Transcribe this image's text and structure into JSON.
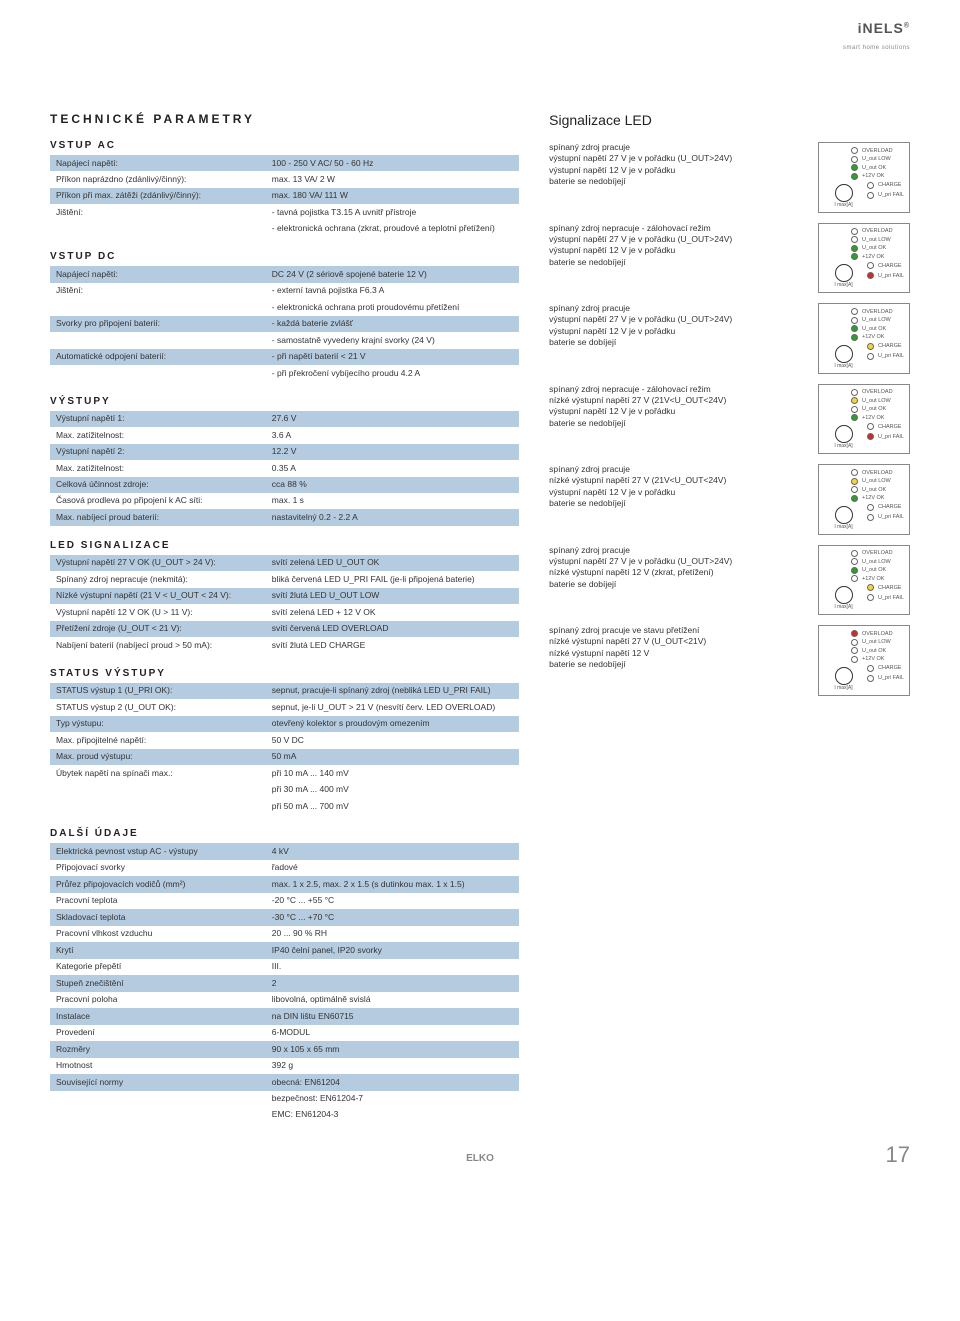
{
  "brand": {
    "name": "iNELS",
    "tagline": "smart home solutions"
  },
  "page_number": "17",
  "footer_logo": "ELKO",
  "colors": {
    "row_bg": "#b5cce0",
    "led_off": "#ffffff",
    "led_green": "#2ca02c",
    "led_red": "#d62728",
    "led_yellow": "#f8d43c",
    "border": "#888888"
  },
  "left": {
    "heading": "TECHNICKÉ PARAMETRY",
    "sections": [
      {
        "title": "VSTUP AC",
        "rows": [
          {
            "alt": true,
            "label": "Napájecí napětí:",
            "value": "100 - 250 V AC/ 50 - 60 Hz"
          },
          {
            "alt": false,
            "label": "Příkon naprázdno (zdánlivý/činný):",
            "value": "max. 13 VA/ 2 W"
          },
          {
            "alt": true,
            "label": "Příkon při max. zátěži (zdánlivý/činný):",
            "value": "max. 180 VA/ 111 W"
          },
          {
            "alt": false,
            "label": "Jištění:",
            "value": "- tavná pojistka T3.15 A uvnitř přístroje"
          },
          {
            "alt": false,
            "label": "",
            "value": "- elektronická ochrana (zkrat, proudové a teplotní přetížení)"
          }
        ]
      },
      {
        "title": "VSTUP DC",
        "rows": [
          {
            "alt": true,
            "label": "Napájecí napětí:",
            "value": "DC 24 V (2 sériově spojené baterie 12 V)"
          },
          {
            "alt": false,
            "label": "Jištění:",
            "value": "- externí tavná pojistka F6.3 A"
          },
          {
            "alt": false,
            "label": "",
            "value": "- elektronická ochrana proti proudovému přetížení"
          },
          {
            "alt": true,
            "label": "Svorky pro připojení baterií:",
            "value": "- každá baterie zvlášť"
          },
          {
            "alt": false,
            "label": "",
            "value": "- samostatně vyvedeny krajní svorky (24 V)"
          },
          {
            "alt": true,
            "label": "Automatické odpojení baterií:",
            "value": "- při napětí baterií < 21 V"
          },
          {
            "alt": false,
            "label": "",
            "value": "- při překročení vybíjecího proudu 4.2 A"
          }
        ]
      },
      {
        "title": "VÝSTUPY",
        "rows": [
          {
            "alt": true,
            "label": "Výstupní napětí 1:",
            "value": "27.6 V"
          },
          {
            "alt": false,
            "label": "Max. zatížitelnost:",
            "value": "3.6 A"
          },
          {
            "alt": true,
            "label": "Výstupní napětí 2:",
            "value": "12.2 V"
          },
          {
            "alt": false,
            "label": "Max. zatížitelnost:",
            "value": "0.35 A"
          },
          {
            "alt": true,
            "label": "Celková účinnost zdroje:",
            "value": "cca 88 %"
          },
          {
            "alt": false,
            "label": "Časová prodleva po připojení k AC síti:",
            "value": "max. 1 s"
          },
          {
            "alt": true,
            "label": "Max. nabíjecí proud baterií:",
            "value": "nastavitelný 0.2 - 2.2 A"
          }
        ]
      },
      {
        "title": "LED SIGNALIZACE",
        "rows": [
          {
            "alt": true,
            "label": "Výstupní napětí 27 V OK (U_OUT > 24 V):",
            "value": "svítí zelená LED U_OUT OK"
          },
          {
            "alt": false,
            "label": "Spínaný zdroj nepracuje (nekmitá):",
            "value": "bliká červená LED U_PRI FAIL (je-li připojená baterie)"
          },
          {
            "alt": true,
            "label": "Nízké výstupní napětí (21 V < U_OUT < 24 V):",
            "value": "svítí žlutá LED U_OUT LOW"
          },
          {
            "alt": false,
            "label": "Výstupní napětí 12 V OK (U > 11 V):",
            "value": "svítí zelená LED + 12 V OK"
          },
          {
            "alt": true,
            "label": "Přetížení zdroje (U_OUT < 21 V):",
            "value": "svítí červená LED OVERLOAD"
          },
          {
            "alt": false,
            "label": "Nabíjení baterií (nabíjecí proud > 50 mA):",
            "value": "svítí žlutá LED CHARGE"
          }
        ]
      },
      {
        "title": "STATUS VÝSTUPY",
        "rows": [
          {
            "alt": true,
            "label": "STATUS výstup 1 (U_PRI OK):",
            "value": "sepnut, pracuje-li spínaný zdroj (nebliká LED U_PRI FAIL)"
          },
          {
            "alt": false,
            "label": "STATUS výstup 2 (U_OUT OK):",
            "value": "sepnut, je-li U_OUT > 21 V (nesvítí červ. LED OVERLOAD)"
          },
          {
            "alt": true,
            "label": "Typ výstupu:",
            "value": "otevřený kolektor s proudovým omezením"
          },
          {
            "alt": false,
            "label": "Max. připojitelné napětí:",
            "value": "50 V DC"
          },
          {
            "alt": true,
            "label": "Max. proud výstupu:",
            "value": "50 mA"
          },
          {
            "alt": false,
            "label": "Úbytek napětí na spínači max.:",
            "value": "při 10 mA ... 140 mV"
          },
          {
            "alt": false,
            "label": "",
            "value": "při 30 mA ... 400 mV"
          },
          {
            "alt": false,
            "label": "",
            "value": "při 50 mA ... 700 mV"
          }
        ]
      },
      {
        "title": "DALŠÍ ÚDAJE",
        "rows": [
          {
            "alt": true,
            "label": "Elektrická pevnost vstup AC - výstupy",
            "value": "4 kV"
          },
          {
            "alt": false,
            "label": "Připojovací svorky",
            "value": "řadové"
          },
          {
            "alt": true,
            "label": "Průřez připojovacích vodičů (mm²)",
            "value": "max. 1 x 2.5, max. 2 x 1.5 (s dutinkou max. 1 x 1.5)"
          },
          {
            "alt": false,
            "label": "Pracovní teplota",
            "value": "-20 °C ... +55 °C"
          },
          {
            "alt": true,
            "label": "Skladovací teplota",
            "value": "-30 °C ... +70 °C"
          },
          {
            "alt": false,
            "label": "Pracovní vlhkost vzduchu",
            "value": "20 ... 90 % RH"
          },
          {
            "alt": true,
            "label": "Krytí",
            "value": "IP40 čelní panel, IP20 svorky"
          },
          {
            "alt": false,
            "label": "Kategorie přepětí",
            "value": "III."
          },
          {
            "alt": true,
            "label": "Stupeň znečištění",
            "value": "2"
          },
          {
            "alt": false,
            "label": "Pracovní poloha",
            "value": "libovolná, optimálně svislá"
          },
          {
            "alt": true,
            "label": "Instalace",
            "value": "na DIN lištu EN60715"
          },
          {
            "alt": false,
            "label": "Provedení",
            "value": "6-MODUL"
          },
          {
            "alt": true,
            "label": "Rozměry",
            "value": "90 x 105 x 65 mm"
          },
          {
            "alt": false,
            "label": "Hmotnost",
            "value": "392 g"
          },
          {
            "alt": true,
            "label": "Související normy",
            "value": "obecná: EN61204"
          },
          {
            "alt": false,
            "label": "",
            "value": "bezpečnost: EN61204-7"
          },
          {
            "alt": false,
            "label": "",
            "value": "EMC: EN61204-3"
          }
        ]
      }
    ]
  },
  "right": {
    "heading": "Signalizace LED",
    "led_labels": [
      "OVERLOAD",
      "U_out LOW",
      "U_out OK",
      "+12V OK",
      "CHARGE",
      "U_pri FAIL"
    ],
    "dial_label": "I max[A]",
    "blocks": [
      {
        "lines": [
          "spínaný zdroj pracuje",
          "výstupní napětí 27 V je v pořádku (U_OUT>24V)",
          "výstupní napětí 12 V je v pořádku",
          "baterie se nedobíjejí"
        ],
        "leds": [
          "off",
          "off",
          "green",
          "green",
          "off",
          "off"
        ]
      },
      {
        "lines": [
          "spínaný zdroj nepracuje - zálohovací režim",
          "výstupní napětí 27 V je v pořádku (U_OUT>24V)",
          "výstupní napětí 12 V je v pořádku",
          "baterie se nedobíjejí"
        ],
        "leds": [
          "off",
          "off",
          "green",
          "green",
          "off",
          "red"
        ]
      },
      {
        "lines": [
          "spínaný zdroj pracuje",
          "výstupní napětí 27 V je v pořádku (U_OUT>24V)",
          "výstupní napětí 12 V je v pořádku",
          "baterie se dobíjejí"
        ],
        "leds": [
          "off",
          "off",
          "green",
          "green",
          "yellow",
          "off"
        ]
      },
      {
        "lines": [
          "spínaný zdroj nepracuje - zálohovací režim",
          "nízké výstupní napětí 27 V (21V<U_OUT<24V)",
          "výstupní napětí 12 V je v pořádku",
          "baterie se nedobíjejí"
        ],
        "leds": [
          "off",
          "yellow",
          "off",
          "green",
          "off",
          "red"
        ]
      },
      {
        "lines": [
          "spínaný zdroj pracuje",
          "nízké výstupní napětí 27 V (21V<U_OUT<24V)",
          "výstupní napětí 12 V je v pořádku",
          "baterie se nedobíjejí"
        ],
        "leds": [
          "off",
          "yellow",
          "off",
          "green",
          "off",
          "off"
        ]
      },
      {
        "lines": [
          "spínaný zdroj pracuje",
          "výstupní napětí 27 V je v pořádku (U_OUT>24V)",
          "nízké výstupní napětí 12 V (zkrat, přetížení)",
          "baterie se dobíjejí"
        ],
        "leds": [
          "off",
          "off",
          "green",
          "off",
          "yellow",
          "off"
        ]
      },
      {
        "lines": [
          "spínaný zdroj pracuje ve stavu přetížení",
          "nízké výstupní napětí 27 V (U_OUT<21V)",
          "nízké výstupní napětí 12 V",
          "baterie se nedobíjejí"
        ],
        "leds": [
          "red",
          "off",
          "off",
          "off",
          "off",
          "off"
        ]
      }
    ]
  }
}
